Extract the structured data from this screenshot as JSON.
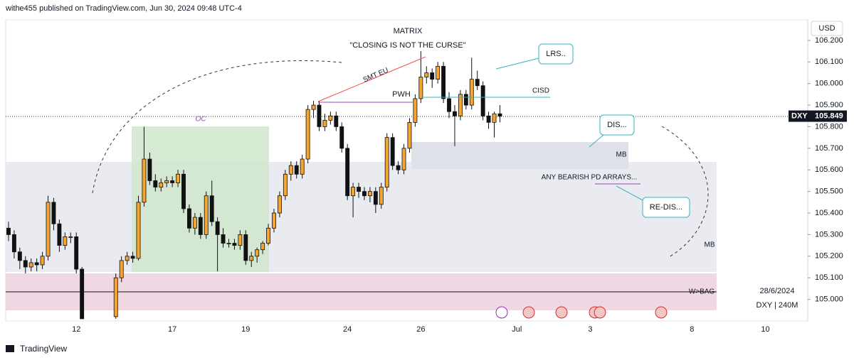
{
  "header": {
    "text": "withe455 published on TradingView.com, Jun 30, 2024 09:48 UTC-4"
  },
  "chart_data": {
    "type": "candlestick",
    "title": "MATRIX",
    "subtitle": "\"CLOSING IS NOT THE CURSE\"",
    "categories": [
      null,
      null,
      null,
      null,
      null,
      null,
      null,
      null,
      null,
      null,
      null,
      null,
      "12",
      null,
      null,
      null,
      null,
      null,
      null,
      null,
      null,
      null,
      null,
      null,
      null,
      null,
      null,
      null,
      null,
      "17",
      null,
      null,
      null,
      null,
      null,
      null,
      null,
      null,
      null,
      null,
      null,
      null,
      "19",
      null,
      null,
      null,
      null,
      null,
      null,
      null,
      null,
      null,
      null,
      null,
      null,
      null,
      null,
      null,
      null,
      null,
      "24",
      null,
      null,
      null,
      null,
      null,
      null,
      null,
      null,
      null,
      null,
      null,
      null,
      "26",
      null,
      null,
      null,
      null,
      null,
      null,
      null,
      null,
      null,
      null,
      null,
      null,
      null,
      null,
      null,
      null,
      "Jul",
      null,
      null,
      null,
      null,
      null,
      null,
      null,
      null,
      null,
      null,
      null,
      null,
      "3",
      null,
      null,
      null,
      null,
      null,
      null,
      null,
      null,
      null,
      null,
      null,
      null,
      null,
      null,
      null,
      null,
      null,
      "8",
      null,
      null,
      null,
      null,
      null,
      null,
      null,
      null,
      null,
      null,
      null,
      null,
      "10",
      null,
      null,
      null,
      null,
      null,
      null,
      null
    ],
    "open": [
      105.33,
      105.3,
      105.22,
      105.18,
      105.15,
      105.17,
      105.16,
      105.2,
      105.45,
      105.35,
      105.25,
      105.29,
      105.29,
      105.14,
      null,
      null,
      null,
      null,
      null,
      104.92,
      105.1,
      105.18,
      105.2,
      105.19,
      105.45,
      105.65,
      105.55,
      105.52,
      105.54,
      105.55,
      105.54,
      105.58,
      105.42,
      105.33,
      105.38,
      105.3,
      105.48,
      105.36,
      105.3,
      105.26,
      105.26,
      105.25,
      105.3,
      105.18,
      105.2,
      105.23,
      105.26,
      105.33,
      105.4,
      105.48,
      105.58,
      105.62,
      105.58,
      105.65,
      105.88,
      105.9,
      105.8,
      105.83,
      105.85,
      105.8,
      105.7,
      105.48,
      105.52,
      105.5,
      105.48,
      105.5,
      105.44,
      105.52,
      105.75,
      105.62,
      105.6,
      105.7,
      105.82,
      105.93,
      106.03,
      106.05,
      106.02,
      106.08,
      105.93,
      105.87,
      105.85,
      105.95,
      105.9,
      106.02,
      105.99,
      105.85,
      105.82,
      105.86,
      null,
      null,
      null,
      null,
      null,
      null,
      null,
      null,
      null,
      null,
      null,
      null,
      null,
      null,
      null,
      null,
      null,
      null,
      null,
      null,
      null,
      null,
      null,
      null,
      null,
      null,
      null,
      null,
      null,
      null,
      null,
      null,
      null,
      null,
      null,
      null,
      null,
      null,
      null,
      null,
      null,
      null,
      null,
      null,
      null,
      null,
      null,
      null,
      null,
      null,
      null,
      null,
      null,
      null
    ],
    "high": [
      105.36,
      105.32,
      105.24,
      105.2,
      105.19,
      105.19,
      105.22,
      105.48,
      105.47,
      105.37,
      105.31,
      105.31,
      105.31,
      105.15,
      null,
      null,
      null,
      null,
      null,
      105.12,
      105.2,
      105.22,
      105.22,
      105.48,
      105.8,
      105.68,
      105.58,
      105.56,
      105.57,
      105.57,
      105.6,
      105.6,
      105.44,
      105.4,
      105.4,
      105.5,
      105.55,
      105.38,
      105.33,
      105.28,
      105.28,
      105.32,
      105.32,
      105.22,
      105.24,
      105.27,
      105.35,
      105.42,
      105.5,
      105.6,
      105.64,
      105.64,
      105.67,
      105.9,
      105.92,
      105.92,
      105.86,
      105.87,
      105.87,
      105.82,
      105.72,
      105.54,
      105.54,
      105.52,
      105.52,
      105.52,
      105.54,
      105.77,
      105.77,
      105.64,
      105.72,
      105.84,
      105.95,
      106.15,
      106.08,
      106.07,
      106.1,
      106.1,
      105.96,
      105.9,
      105.97,
      105.97,
      106.12,
      106.06,
      106.01,
      105.87,
      105.87,
      105.9,
      null,
      null,
      null,
      null,
      null,
      null,
      null,
      null,
      null,
      null,
      null,
      null,
      null,
      null,
      null,
      null,
      null,
      null,
      null,
      null,
      null,
      null,
      null,
      null,
      null,
      null,
      null,
      null,
      null,
      null,
      null,
      null,
      null,
      null,
      null,
      null,
      null,
      null,
      null,
      null,
      null,
      null,
      null,
      null,
      null,
      null,
      null,
      null,
      null,
      null,
      null,
      null,
      null,
      null
    ],
    "low": [
      105.27,
      105.19,
      105.14,
      105.12,
      105.13,
      105.13,
      105.14,
      105.18,
      105.32,
      105.22,
      105.23,
      105.26,
      105.12,
      104.91,
      null,
      null,
      null,
      null,
      null,
      104.91,
      105.08,
      105.16,
      105.17,
      105.18,
      105.43,
      105.53,
      105.5,
      105.5,
      105.52,
      105.52,
      105.52,
      105.4,
      105.31,
      105.3,
      105.28,
      105.28,
      105.34,
      105.13,
      105.24,
      105.24,
      105.23,
      105.23,
      105.16,
      105.15,
      105.17,
      105.21,
      105.25,
      105.31,
      105.38,
      105.46,
      105.55,
      105.56,
      105.56,
      105.63,
      105.84,
      105.78,
      105.78,
      105.81,
      105.78,
      105.68,
      105.46,
      105.38,
      105.47,
      105.46,
      105.45,
      105.4,
      105.42,
      105.5,
      105.6,
      105.58,
      105.58,
      105.68,
      105.8,
      105.91,
      106.0,
      105.98,
      106.0,
      105.91,
      105.84,
      105.71,
      105.83,
      105.88,
      105.88,
      105.97,
      105.83,
      105.79,
      105.75,
      105.82,
      null,
      null,
      null,
      null,
      null,
      null,
      null,
      null,
      null,
      null,
      null,
      null,
      null,
      null,
      null,
      null,
      null,
      null,
      null,
      null,
      null,
      null,
      null,
      null,
      null,
      null,
      null,
      null,
      null,
      null,
      null,
      null,
      null,
      null,
      null,
      null,
      null,
      null,
      null,
      null,
      null,
      null,
      null,
      null,
      null,
      null,
      null,
      null,
      null,
      null,
      null,
      null,
      null,
      null
    ],
    "close": [
      105.3,
      105.22,
      105.18,
      105.15,
      105.17,
      105.16,
      105.2,
      105.45,
      105.35,
      105.25,
      105.29,
      105.29,
      105.14,
      104.91,
      null,
      null,
      null,
      null,
      null,
      105.1,
      105.18,
      105.2,
      105.19,
      105.45,
      105.65,
      105.55,
      105.52,
      105.54,
      105.55,
      105.54,
      105.58,
      105.42,
      105.33,
      105.38,
      105.3,
      105.48,
      105.36,
      105.3,
      105.26,
      105.26,
      105.25,
      105.3,
      105.18,
      105.2,
      105.23,
      105.26,
      105.33,
      105.4,
      105.48,
      105.58,
      105.62,
      105.58,
      105.65,
      105.88,
      105.9,
      105.8,
      105.83,
      105.85,
      105.8,
      105.7,
      105.48,
      105.52,
      105.5,
      105.48,
      105.5,
      105.44,
      105.52,
      105.75,
      105.62,
      105.6,
      105.7,
      105.82,
      105.93,
      106.03,
      106.05,
      106.02,
      106.08,
      105.93,
      105.87,
      105.85,
      105.95,
      105.9,
      106.02,
      105.99,
      105.85,
      105.82,
      105.86,
      105.849,
      null,
      null,
      null,
      null,
      null,
      null,
      null,
      null,
      null,
      null,
      null,
      null,
      null,
      null,
      null,
      null,
      null,
      null,
      null,
      null,
      null,
      null,
      null,
      null,
      null,
      null,
      null,
      null,
      null,
      null,
      null,
      null,
      null,
      null,
      null,
      null,
      null,
      null,
      null,
      null,
      null,
      null,
      null,
      null,
      null,
      null,
      null,
      null,
      null,
      null,
      null,
      null,
      null,
      null
    ],
    "up_color": "#f7a531",
    "down_color": "#111111",
    "ylim": [
      104.9,
      106.295
    ],
    "yticks": [
      {
        "value": 106.2,
        "label": "106.200"
      },
      {
        "value": 106.1,
        "label": "106.100"
      },
      {
        "value": 106.0,
        "label": "106.000"
      },
      {
        "value": 105.9,
        "label": "105.900"
      },
      {
        "value": 105.8,
        "label": "105.800"
      },
      {
        "value": 105.7,
        "label": "105.700"
      },
      {
        "value": 105.6,
        "label": "105.600"
      },
      {
        "value": 105.5,
        "label": "105.500"
      },
      {
        "value": 105.4,
        "label": "105.400"
      },
      {
        "value": 105.3,
        "label": "105.300"
      },
      {
        "value": 105.2,
        "label": "105.200"
      },
      {
        "value": 105.1,
        "label": "105.100"
      },
      {
        "value": 105.0,
        "label": "105.000"
      }
    ],
    "grid": false,
    "currency": "USD",
    "last_price": {
      "symbol": "DXY",
      "value": 105.849,
      "label": "105.849"
    },
    "annotations": {
      "oc": "OC",
      "smt": "SMT EU",
      "pwh": "PWH",
      "cisd": "CISD",
      "lrs": "LRS..",
      "dis": "DIS...",
      "redis": "RE-DIS...",
      "arrays": "ANY BEARISH PD ARRAYS...",
      "mb1": "MB",
      "mb2": "MB",
      "bag": "W>BAG"
    }
  },
  "footer": {
    "date": "28/6/2024",
    "symbol": "DXY | 240M",
    "logo": "TradingView"
  }
}
